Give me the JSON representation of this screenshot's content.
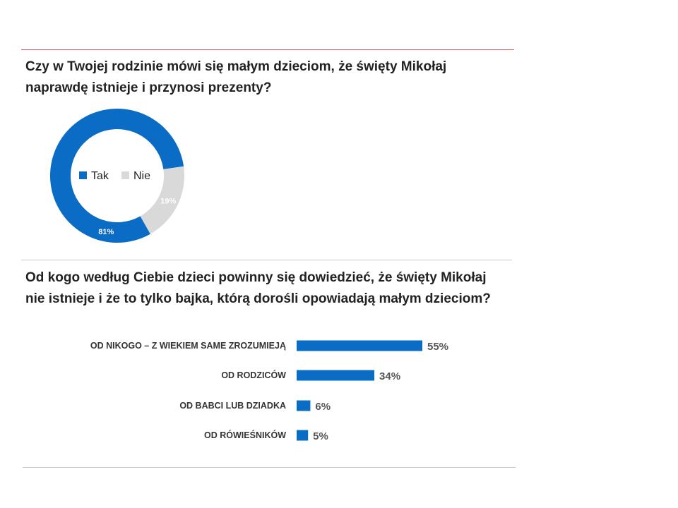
{
  "colors": {
    "primary": "#0a6cc4",
    "secondary": "#d9d9d9"
  },
  "questions": {
    "q1": [
      "Czy w Twojej rodzinie mówi się małym dzieciom, że święty Mikołaj",
      "naprawdę istnieje i przynosi prezenty?"
    ],
    "q2": [
      "Od kogo według Ciebie dzieci powinny się dowiedzieć, że święty Mikołaj",
      "nie istnieje i że to tylko bajka, którą dorośli opowiadają małym dzieciom?"
    ]
  },
  "chart_data": [
    {
      "type": "pie",
      "categories": [
        "Tak",
        "Nie"
      ],
      "values": [
        81,
        19
      ],
      "labels": [
        "81%",
        "19%"
      ],
      "legend": [
        "Tak",
        "Nie"
      ],
      "colors": [
        "#0a6cc4",
        "#d9d9d9"
      ]
    },
    {
      "type": "bar",
      "orientation": "horizontal",
      "categories": [
        "OD NIKOGO – Z WIEKIEM SAME ZROZUMIEJĄ",
        "OD RODZICÓW",
        "OD BABCI LUB DZIADKA",
        "OD RÓWIEŚNIKÓW"
      ],
      "values": [
        55,
        34,
        6,
        5
      ],
      "labels": [
        "55%",
        "34%",
        "6%",
        "5%"
      ],
      "color": "#0a6cc4"
    }
  ]
}
